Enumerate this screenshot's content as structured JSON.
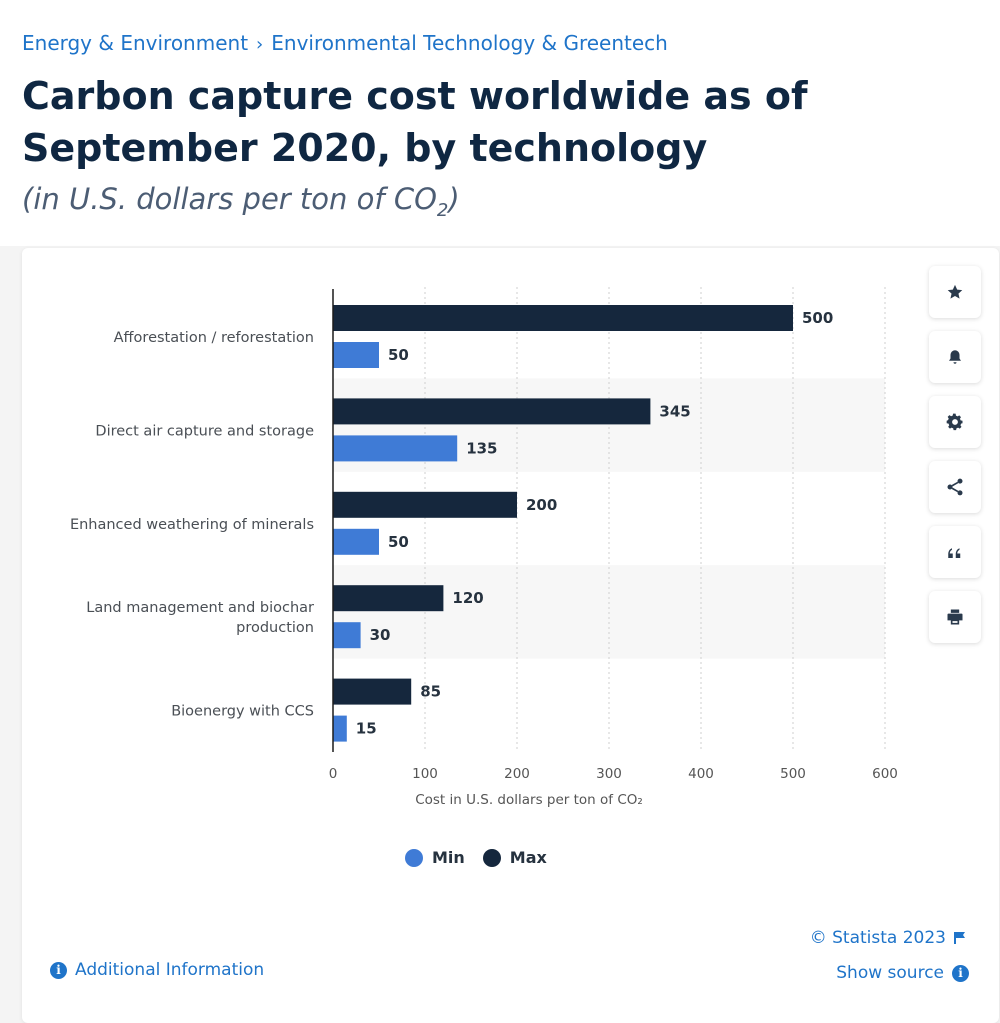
{
  "breadcrumb": {
    "items": [
      "Energy & Environment",
      "Environmental Technology & Greentech"
    ],
    "separator": "›"
  },
  "page": {
    "title": "Carbon capture cost worldwide as of September 2020, by technology",
    "subtitle_prefix": "(in U.S. dollars per ton of CO",
    "subtitle_sub": "2",
    "subtitle_suffix": ")"
  },
  "tools": [
    {
      "name": "star-icon",
      "label": "Favorite"
    },
    {
      "name": "bell-icon",
      "label": "Notification"
    },
    {
      "name": "gear-icon",
      "label": "Settings"
    },
    {
      "name": "share-icon",
      "label": "Share"
    },
    {
      "name": "quote-icon",
      "label": "Cite"
    },
    {
      "name": "print-icon",
      "label": "Print"
    }
  ],
  "chart_data": {
    "type": "bar",
    "orientation": "horizontal",
    "categories": [
      "Afforestation / reforestation",
      "Direct air capture and storage",
      "Enhanced weathering of minerals",
      "Land management and biochar production",
      "Bioenergy with CCS"
    ],
    "category_lines": [
      [
        "Afforestation / reforestation"
      ],
      [
        "Direct air capture and storage"
      ],
      [
        "Enhanced weathering of minerals"
      ],
      [
        "Land management and biochar",
        "production"
      ],
      [
        "Bioenergy with CCS"
      ]
    ],
    "series": [
      {
        "name": "Max",
        "color": "#15273d",
        "values": [
          500,
          345,
          200,
          120,
          85
        ]
      },
      {
        "name": "Min",
        "color": "#3f7bd6",
        "values": [
          50,
          135,
          50,
          30,
          15
        ]
      }
    ],
    "legend_order": [
      "Min",
      "Max"
    ],
    "xlabel": "Cost in U.S. dollars per ton of CO₂",
    "xlim": [
      0,
      600
    ],
    "xticks": [
      0,
      100,
      200,
      300,
      400,
      500,
      600
    ],
    "grid": "vertical dotted",
    "alternate_row_shading": true,
    "legend_position": "bottom-center"
  },
  "footer": {
    "copyright": "© Statista 2023",
    "additional_info": "Additional Information",
    "show_source": "Show source"
  },
  "colors": {
    "link": "#1f74c9",
    "title": "#0f2742",
    "max_bar": "#15273d",
    "min_bar": "#3f7bd6"
  }
}
